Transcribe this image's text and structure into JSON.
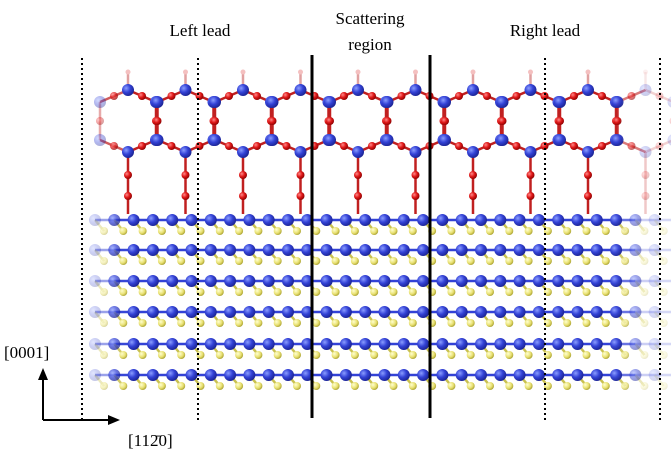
{
  "labels": {
    "left_lead": "Left lead",
    "scattering_region": [
      "Scattering",
      "region"
    ],
    "right_lead": "Right lead"
  },
  "axes": {
    "vertical": "[0001]",
    "horizontal": "[112̄0]"
  }
}
